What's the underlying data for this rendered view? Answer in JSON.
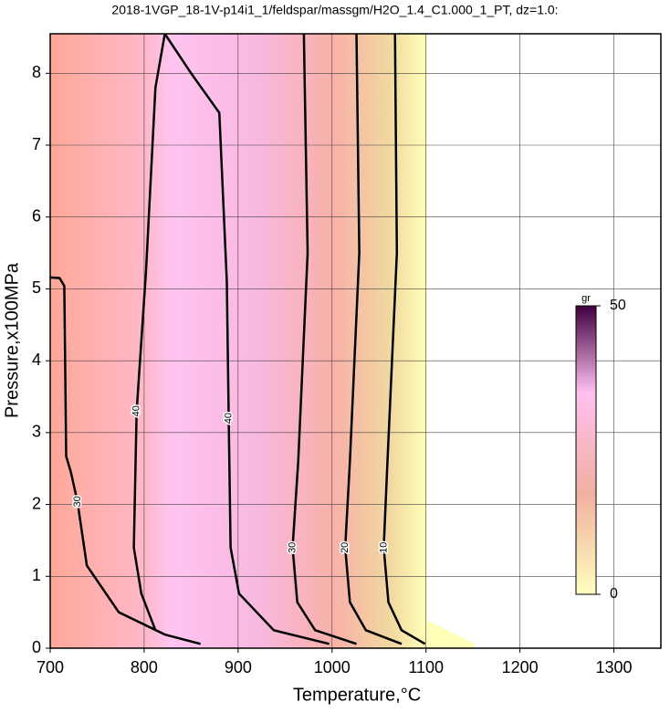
{
  "chart_data": {
    "type": "contour",
    "title": "2018-1VGP_18-1V-p14i1_1/feldspar/massgm/H2O_1.4_C1.000_1_PT, dz=1.0:",
    "xlabel": "Temperature,°C",
    "ylabel": "Pressure,x100MPa",
    "xlim": [
      700,
      1350
    ],
    "ylim": [
      0,
      8.55
    ],
    "xticks": [
      700,
      800,
      900,
      1000,
      1100,
      1200,
      1300
    ],
    "yticks": [
      0,
      1,
      2,
      3,
      4,
      5,
      6,
      7,
      8
    ],
    "grid": true,
    "contours": [
      {
        "level": 10,
        "x": [
          1067,
          1069,
          1059,
          1055,
          1060,
          1074,
          1099
        ],
        "y": [
          8.55,
          5.5,
          2.6,
          1.4,
          0.64,
          0.25,
          0.06
        ]
      },
      {
        "level": 20,
        "x": [
          1026,
          1029,
          1019,
          1014,
          1019,
          1036,
          1074
        ],
        "y": [
          8.55,
          5.5,
          2.6,
          1.4,
          0.64,
          0.25,
          0.06
        ]
      },
      {
        "level": 30,
        "x": [
          970,
          974,
          964,
          958,
          963,
          982,
          1026
        ],
        "y": [
          8.55,
          5.5,
          2.6,
          1.4,
          0.64,
          0.25,
          0.06
        ]
      },
      {
        "level": 40,
        "x": [
          822,
          850,
          880,
          888,
          890,
          892,
          901,
          938,
          997
        ],
        "y": [
          8.55,
          8.0,
          7.45,
          5.1,
          3.2,
          1.4,
          0.76,
          0.25,
          0.06
        ]
      },
      {
        "level": 40,
        "x": [
          822,
          812,
          802,
          792,
          789,
          797,
          812
        ],
        "y": [
          8.55,
          7.8,
          5.25,
          3.3,
          1.4,
          0.76,
          0.25
        ]
      },
      {
        "level": 30,
        "x": [
          700,
          710,
          715,
          717,
          722,
          729,
          739,
          773,
          822,
          860
        ],
        "y": [
          5.16,
          5.15,
          5.04,
          2.67,
          2.45,
          2.04,
          1.15,
          0.5,
          0.19,
          0.06
        ]
      }
    ],
    "colorbar": {
      "label": "gr",
      "lim": [
        0,
        50
      ],
      "ticks": [
        0,
        50
      ]
    }
  }
}
